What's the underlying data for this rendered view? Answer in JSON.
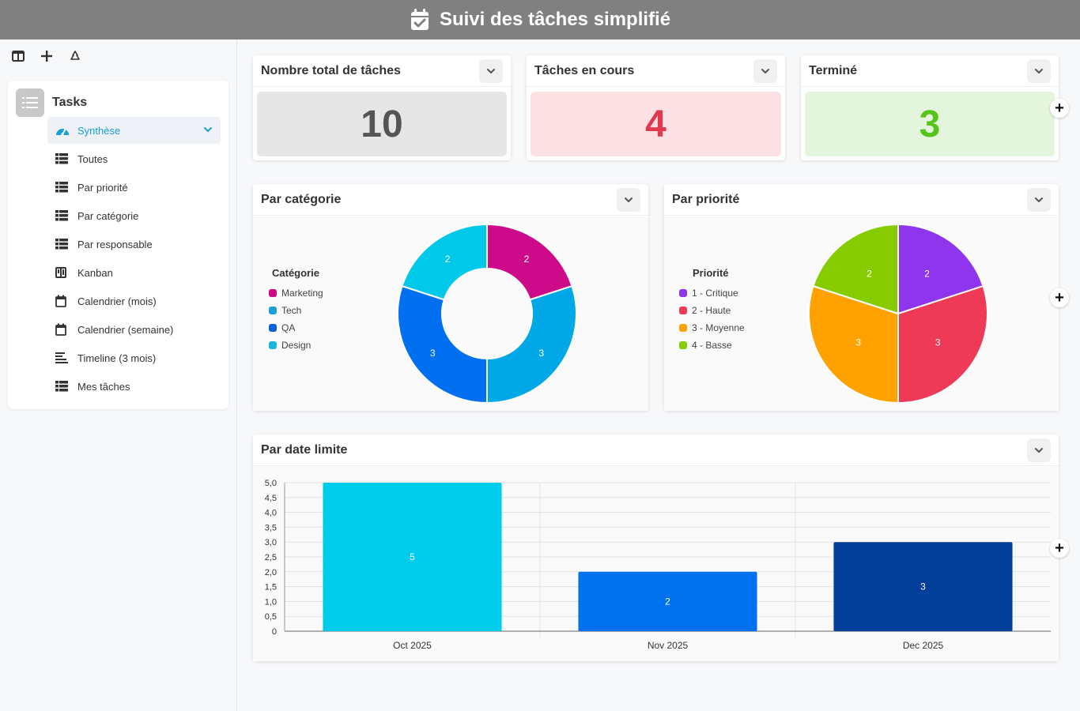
{
  "header": {
    "title": "Suivi des tâches simplifié"
  },
  "toolbar": {
    "icons": [
      "layout-icon",
      "add-icon",
      "recycle-icon"
    ]
  },
  "nav": {
    "group_label": "Tasks",
    "items": [
      {
        "label": "Synthèse",
        "icon": "dashboard-icon",
        "active": true
      },
      {
        "label": "Toutes",
        "icon": "table-icon"
      },
      {
        "label": "Par priorité",
        "icon": "table-icon"
      },
      {
        "label": "Par catégorie",
        "icon": "table-icon"
      },
      {
        "label": "Par responsable",
        "icon": "table-icon"
      },
      {
        "label": "Kanban",
        "icon": "kanban-icon"
      },
      {
        "label": "Calendrier (mois)",
        "icon": "calendar-icon"
      },
      {
        "label": "Calendrier (semaine)",
        "icon": "calendar-icon"
      },
      {
        "label": "Timeline (3 mois)",
        "icon": "timeline-icon"
      },
      {
        "label": "Mes tâches",
        "icon": "table-icon"
      }
    ]
  },
  "kpis": [
    {
      "title": "Nombre total de tâches",
      "value": "10",
      "bg": "#e6e6e6",
      "color": "#555555"
    },
    {
      "title": "Tâches en cours",
      "value": "4",
      "bg": "#fbe1e4",
      "color": "#e0384f"
    },
    {
      "title": "Terminé",
      "value": "3",
      "bg": "#e3f5dc",
      "color": "#56c41a"
    }
  ],
  "charts": {
    "category": {
      "title": "Par catégorie",
      "legend_title": "Catégorie"
    },
    "priority": {
      "title": "Par priorité",
      "legend_title": "Priorité"
    },
    "deadline": {
      "title": "Par date limite"
    }
  },
  "chart_data": [
    {
      "type": "pie",
      "variant": "donut",
      "legend_title": "Catégorie",
      "labels": [
        "Marketing",
        "Tech",
        "QA",
        "Design"
      ],
      "values": [
        2,
        3,
        3,
        2
      ],
      "colors": [
        "#cc0a8a",
        "#00a8e8",
        "#0070f0",
        "#00c8e8"
      ],
      "legend_colors": [
        "#cc0a8a",
        "#1aa0d8",
        "#0a60d8",
        "#1ab8d8"
      ],
      "legend": "left"
    },
    {
      "type": "pie",
      "legend_title": "Priorité",
      "labels": [
        "1 - Critique",
        "2 - Haute",
        "3 - Moyenne",
        "4 - Basse"
      ],
      "values": [
        2,
        3,
        3,
        2
      ],
      "colors": [
        "#8f35ee",
        "#ee3a57",
        "#ffa200",
        "#86cc00"
      ],
      "legend": "left"
    },
    {
      "type": "bar",
      "categories": [
        "Oct 2025",
        "Nov 2025",
        "Dec 2025"
      ],
      "values": [
        5,
        2,
        3
      ],
      "colors": [
        "#00ccec",
        "#0072f0",
        "#003e99"
      ],
      "ylim": [
        0,
        5
      ],
      "yticks": [
        "0",
        "0,5",
        "1,0",
        "1,5",
        "2,0",
        "2,5",
        "3,0",
        "3,5",
        "4,0",
        "4,5",
        "5,0"
      ],
      "grid": true
    }
  ]
}
